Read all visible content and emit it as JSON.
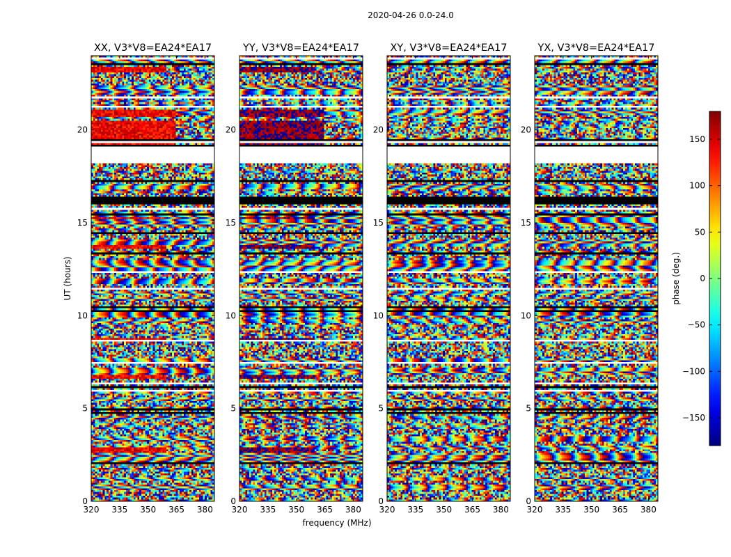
{
  "chart_data": {
    "type": "heatmap",
    "suptitle": "2020-04-26 0.0-24.0",
    "colormap": "jet",
    "panels": [
      {
        "title": "XX, V3*V8=EA24*EA17",
        "coherent_value": 140
      },
      {
        "title": "YY, V3*V8=EA24*EA17",
        "coherent_value": 175
      },
      {
        "title": "XY, V3*V8=EA24*EA17",
        "coherent_value": null
      },
      {
        "title": "YX, V3*V8=EA24*EA17",
        "coherent_value": null
      }
    ],
    "xlabel": "frequency (MHz)",
    "ylabel": "UT (hours)",
    "xlim": [
      320,
      385
    ],
    "ylim": [
      0,
      24
    ],
    "xticks": [
      320,
      335,
      350,
      365,
      380
    ],
    "yticks": [
      0,
      5,
      10,
      15,
      20
    ],
    "colorbar": {
      "label": "phase (deg.)",
      "range": [
        -180,
        180
      ],
      "ticks": [
        150,
        100,
        50,
        0,
        -50,
        -100,
        -150
      ],
      "tick_labels": [
        "150",
        "100",
        "50",
        "0",
        "−50",
        "−100",
        "−150"
      ]
    },
    "flagged_hours": [
      [
        18.2,
        19.1
      ]
    ],
    "coherent_segments": [
      {
        "hours": [
          2.6,
          2.9
        ],
        "freq_max": 360
      },
      {
        "hours": [
          6.6,
          6.8
        ],
        "freq_max": 360
      },
      {
        "hours": [
          8.6,
          8.8
        ],
        "freq_max": 360
      },
      {
        "hours": [
          13.6,
          13.75
        ],
        "freq_max": 360
      },
      {
        "hours": [
          15.2,
          15.3
        ],
        "freq_max": 360
      },
      {
        "hours": [
          17.2,
          17.3
        ],
        "freq_max": 360
      },
      {
        "hours": [
          19.1,
          20.5
        ],
        "freq_max": 365
      },
      {
        "hours": [
          20.7,
          21.1
        ],
        "freq_max": 365
      },
      {
        "hours": [
          23.1,
          23.4
        ],
        "freq_max": 360
      }
    ]
  }
}
